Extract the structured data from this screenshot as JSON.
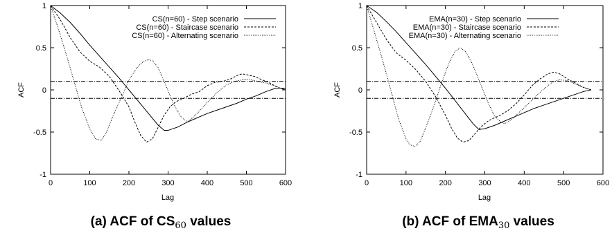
{
  "chart_data": [
    {
      "type": "line",
      "caption": {
        "prefix": "(a) ACF of CS",
        "subscript": "60",
        "suffix": " values"
      },
      "xlabel": "Lag",
      "ylabel": "ACF",
      "xlim": [
        0,
        600
      ],
      "ylim": [
        -1,
        1
      ],
      "xticks": [
        0,
        100,
        200,
        300,
        400,
        500,
        600
      ],
      "yticks": [
        1,
        0.5,
        0,
        -0.5,
        -1
      ],
      "ytick_labels": [
        "1",
        "0.5",
        "0",
        "-0.5",
        "-1"
      ],
      "reference_lines": [
        0.1,
        -0.1
      ],
      "legend_position": "top-right",
      "series": [
        {
          "name": "CS(n=60) - Step scenario",
          "style": "solid",
          "x": [
            0,
            25,
            50,
            75,
            100,
            125,
            150,
            175,
            200,
            225,
            250,
            275,
            290,
            300,
            325,
            350,
            375,
            400,
            425,
            450,
            475,
            500,
            525,
            550,
            575,
            600
          ],
          "y": [
            1.0,
            0.91,
            0.8,
            0.67,
            0.53,
            0.4,
            0.27,
            0.14,
            0.0,
            -0.14,
            -0.28,
            -0.42,
            -0.48,
            -0.48,
            -0.44,
            -0.38,
            -0.33,
            -0.28,
            -0.24,
            -0.2,
            -0.16,
            -0.11,
            -0.07,
            -0.02,
            0.02,
            0.02
          ]
        },
        {
          "name": "CS(n=60) - Staircase scenario",
          "style": "dashed",
          "x": [
            0,
            25,
            50,
            75,
            100,
            125,
            150,
            175,
            200,
            215,
            230,
            245,
            260,
            275,
            290,
            305,
            320,
            340,
            360,
            380,
            400,
            420,
            440,
            460,
            480,
            490,
            500,
            520,
            540,
            560,
            580,
            600
          ],
          "y": [
            1.0,
            0.83,
            0.62,
            0.45,
            0.34,
            0.27,
            0.16,
            -0.01,
            -0.2,
            -0.38,
            -0.54,
            -0.62,
            -0.58,
            -0.44,
            -0.3,
            -0.2,
            -0.14,
            -0.1,
            -0.05,
            -0.02,
            0.05,
            0.09,
            0.1,
            0.13,
            0.18,
            0.19,
            0.18,
            0.16,
            0.12,
            0.08,
            0.03,
            0.0
          ]
        },
        {
          "name": "CS(n=60) - Alternating scenario",
          "style": "dotted",
          "x": [
            0,
            20,
            40,
            60,
            80,
            100,
            115,
            130,
            145,
            160,
            180,
            200,
            220,
            235,
            250,
            262,
            275,
            290,
            305,
            320,
            335,
            350,
            370,
            390,
            410,
            430,
            450,
            470,
            490,
            510,
            530,
            550,
            570,
            600
          ],
          "y": [
            1.0,
            0.72,
            0.42,
            0.1,
            -0.22,
            -0.46,
            -0.58,
            -0.6,
            -0.48,
            -0.3,
            -0.1,
            0.12,
            0.26,
            0.33,
            0.36,
            0.34,
            0.26,
            0.1,
            -0.07,
            -0.22,
            -0.33,
            -0.38,
            -0.3,
            -0.2,
            -0.1,
            -0.01,
            0.06,
            0.1,
            0.12,
            0.12,
            0.1,
            0.08,
            0.05,
            0.0
          ]
        }
      ]
    },
    {
      "type": "line",
      "caption": {
        "prefix": "(b) ACF of EMA",
        "subscript": "30",
        "suffix": " values"
      },
      "xlabel": "Lag",
      "ylabel": "ACF",
      "xlim": [
        0,
        600
      ],
      "ylim": [
        -1,
        1
      ],
      "xticks": [
        0,
        100,
        200,
        300,
        400,
        500,
        600
      ],
      "yticks": [
        1,
        0.5,
        0,
        -0.5,
        -1
      ],
      "ytick_labels": [
        "1",
        "0.5",
        "0",
        "-0.5",
        "-1"
      ],
      "reference_lines": [
        0.1,
        -0.1
      ],
      "legend_position": "top-right",
      "series": [
        {
          "name": "EMA(n=30) - Step scenario",
          "style": "solid",
          "x": [
            0,
            25,
            50,
            75,
            100,
            125,
            150,
            175,
            200,
            225,
            250,
            270,
            285,
            300,
            325,
            350,
            375,
            400,
            425,
            450,
            475,
            500,
            525,
            550,
            570
          ],
          "y": [
            1.0,
            0.92,
            0.81,
            0.69,
            0.56,
            0.43,
            0.3,
            0.16,
            0.02,
            -0.13,
            -0.28,
            -0.4,
            -0.47,
            -0.46,
            -0.42,
            -0.37,
            -0.32,
            -0.27,
            -0.22,
            -0.18,
            -0.14,
            -0.1,
            -0.06,
            -0.02,
            0.0
          ]
        },
        {
          "name": "EMA(n=30) - Staircase scenario",
          "style": "dashed",
          "x": [
            0,
            25,
            50,
            75,
            100,
            125,
            150,
            175,
            200,
            215,
            230,
            245,
            260,
            275,
            290,
            305,
            320,
            340,
            360,
            380,
            400,
            420,
            440,
            460,
            475,
            490,
            510,
            530,
            550,
            570
          ],
          "y": [
            1.0,
            0.8,
            0.6,
            0.44,
            0.35,
            0.24,
            0.1,
            -0.08,
            -0.3,
            -0.45,
            -0.57,
            -0.62,
            -0.6,
            -0.52,
            -0.44,
            -0.38,
            -0.34,
            -0.3,
            -0.24,
            -0.16,
            -0.06,
            0.05,
            0.13,
            0.19,
            0.21,
            0.19,
            0.13,
            0.08,
            0.03,
            0.0
          ]
        },
        {
          "name": "EMA(n=30) - Alternating scenario",
          "style": "dotted",
          "x": [
            0,
            20,
            40,
            60,
            80,
            100,
            110,
            122,
            135,
            150,
            170,
            190,
            210,
            225,
            238,
            250,
            265,
            280,
            295,
            310,
            325,
            340,
            350,
            365,
            380,
            400,
            420,
            440,
            460,
            475,
            490,
            510,
            530,
            550,
            570
          ],
          "y": [
            1.0,
            0.68,
            0.36,
            0.02,
            -0.33,
            -0.58,
            -0.65,
            -0.67,
            -0.62,
            -0.45,
            -0.2,
            0.08,
            0.33,
            0.46,
            0.5,
            0.46,
            0.34,
            0.18,
            0.0,
            -0.17,
            -0.31,
            -0.38,
            -0.4,
            -0.36,
            -0.3,
            -0.21,
            -0.12,
            -0.03,
            0.05,
            0.1,
            0.12,
            0.11,
            0.07,
            0.03,
            0.0
          ]
        }
      ]
    }
  ]
}
